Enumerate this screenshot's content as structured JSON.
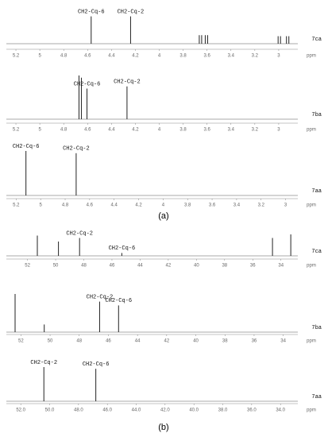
{
  "chart_data": [
    {
      "type": "stick",
      "label": "7ca",
      "xlabel": "ppm",
      "xlim": [
        5.28,
        2.84
      ],
      "xticks": [
        5.2,
        5.0,
        4.8,
        4.6,
        4.4,
        4.2,
        4.0,
        3.8,
        3.6,
        3.4,
        3.2,
        3.0
      ],
      "x": [
        4.57,
        4.24,
        3.665,
        3.645,
        3.615,
        3.595,
        3.005,
        2.985,
        2.935,
        2.915
      ],
      "values": [
        80,
        80,
        25,
        25,
        25,
        25,
        22,
        22,
        22,
        22
      ],
      "peak_labels": [
        "CH2-Cq-6",
        "CH2-Cq-2",
        null,
        null,
        null,
        null,
        null,
        null,
        null,
        null
      ],
      "ylim": [
        0,
        100
      ],
      "color": "#222222"
    },
    {
      "type": "stick",
      "label": "7ba",
      "xlabel": "ppm",
      "xlim": [
        5.28,
        2.84
      ],
      "xticks": [
        5.2,
        5.0,
        4.8,
        4.6,
        4.4,
        4.2,
        4.0,
        3.8,
        3.6,
        3.4,
        3.2,
        3.0
      ],
      "x": [
        4.672,
        4.652,
        4.605,
        4.27
      ],
      "values": [
        100,
        95,
        70,
        75
      ],
      "peak_labels": [
        null,
        null,
        "CH2-Cq-6",
        "CH2-Cq-2"
      ],
      "ylim": [
        0,
        100
      ],
      "color": "#222222"
    },
    {
      "type": "stick",
      "label": "7aa",
      "xlabel": "ppm",
      "xlim": [
        5.28,
        2.9
      ],
      "xticks": [
        5.2,
        5.0,
        4.8,
        4.6,
        4.4,
        4.2,
        4.0,
        3.8,
        3.6,
        3.4,
        3.2,
        3.0
      ],
      "x": [
        5.12,
        4.71
      ],
      "values": [
        100,
        95
      ],
      "peak_labels": [
        "CH2-Cq-6",
        "CH2-Cq-2"
      ],
      "ylim": [
        0,
        100
      ],
      "color": "#222222"
    },
    {
      "type": "stick",
      "label": "7ca",
      "xlabel": "ppm",
      "xlim": [
        53.5,
        32.8
      ],
      "xticks": [
        52,
        50,
        48,
        46,
        44,
        42,
        40,
        38,
        36,
        34
      ],
      "x": [
        51.3,
        49.8,
        48.3,
        45.3,
        34.6,
        33.3
      ],
      "values": [
        85,
        60,
        75,
        12,
        75,
        90
      ],
      "peak_labels": [
        null,
        null,
        "CH2-Cq-2",
        "CH2-Cq-6",
        null,
        null
      ],
      "ylim": [
        0,
        100
      ],
      "color": "#222222"
    },
    {
      "type": "stick",
      "label": "7ba",
      "xlabel": "ppm",
      "xlim": [
        53,
        33
      ],
      "xticks": [
        52,
        50,
        48,
        46,
        44,
        42,
        40,
        38,
        36,
        34
      ],
      "x": [
        52.4,
        50.4,
        46.6,
        45.3
      ],
      "values": [
        100,
        20,
        80,
        70
      ],
      "peak_labels": [
        null,
        null,
        "CH2-Cq-2",
        "CH2-Cq-6"
      ],
      "ylim": [
        0,
        100
      ],
      "color": "#222222"
    },
    {
      "type": "stick",
      "label": "7aa",
      "xlabel": "ppm",
      "xlim": [
        53,
        32.8
      ],
      "xticks": [
        {
          "value": 52,
          "label": "52.0"
        },
        {
          "value": 50,
          "label": "50.0"
        },
        {
          "value": 48,
          "label": "48.0"
        },
        {
          "value": 46,
          "label": "46.0"
        },
        {
          "value": 44,
          "label": "44.0"
        },
        {
          "value": 42,
          "label": "42.0"
        },
        {
          "value": 40,
          "label": "40.0"
        },
        {
          "value": 38,
          "label": "38.0"
        },
        {
          "value": 36,
          "label": "36.0"
        },
        {
          "value": 34,
          "label": "34.0"
        }
      ],
      "x": [
        50.4,
        46.8
      ],
      "values": [
        100,
        95
      ],
      "peak_labels": [
        "CH2-Cq-2",
        "CH2-Cq-6"
      ],
      "ylim": [
        0,
        100
      ],
      "color": "#222222"
    }
  ],
  "captions": [
    "(a)",
    "(b)"
  ]
}
